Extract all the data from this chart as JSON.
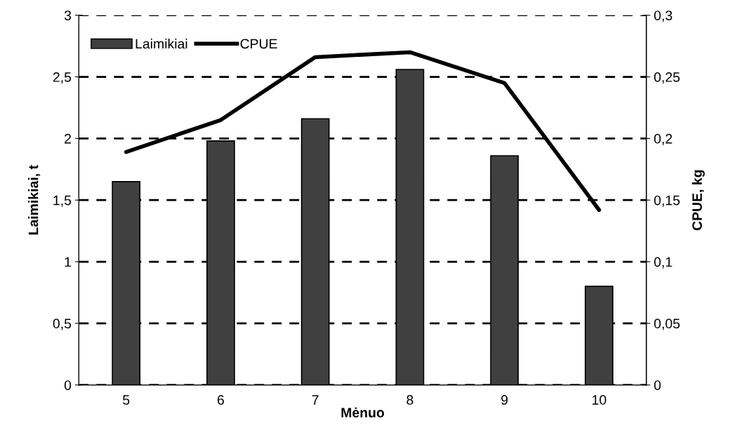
{
  "chart_data": {
    "type": "bar",
    "xlabel": "Mėnuo",
    "ylabel": "Laimikiai, t",
    "y2label": "CPUE, kg",
    "categories": [
      "5",
      "6",
      "7",
      "8",
      "9",
      "10"
    ],
    "series": [
      {
        "name": "Laimikiai",
        "color": "#404040",
        "values": [
          1.65,
          1.98,
          2.16,
          2.56,
          1.86,
          0.8
        ]
      },
      {
        "name": "CPUE",
        "type": "line",
        "axis": "y2",
        "color": "#000000",
        "values": [
          0.189,
          0.215,
          0.266,
          0.27,
          0.245,
          0.142
        ]
      }
    ],
    "ylim": [
      0,
      3
    ],
    "yticks": [
      0,
      {
        "value": 0.5,
        "label": "0,5"
      },
      1,
      {
        "value": 1.5,
        "label": "1,5"
      },
      2,
      {
        "value": 2.5,
        "label": "2,5"
      },
      3
    ],
    "y2lim": [
      0,
      0.3
    ],
    "y2ticks": [
      0,
      {
        "value": 0.05,
        "label": "0,05"
      },
      {
        "value": 0.1,
        "label": "0,1"
      },
      {
        "value": 0.15,
        "label": "0,15"
      },
      {
        "value": 0.2,
        "label": "0,2"
      },
      {
        "value": 0.25,
        "label": "0,25"
      },
      {
        "value": 0.3,
        "label": "0,3"
      }
    ],
    "grid": "y",
    "legend": "top left",
    "marker": "none",
    "line_style": "solid"
  }
}
